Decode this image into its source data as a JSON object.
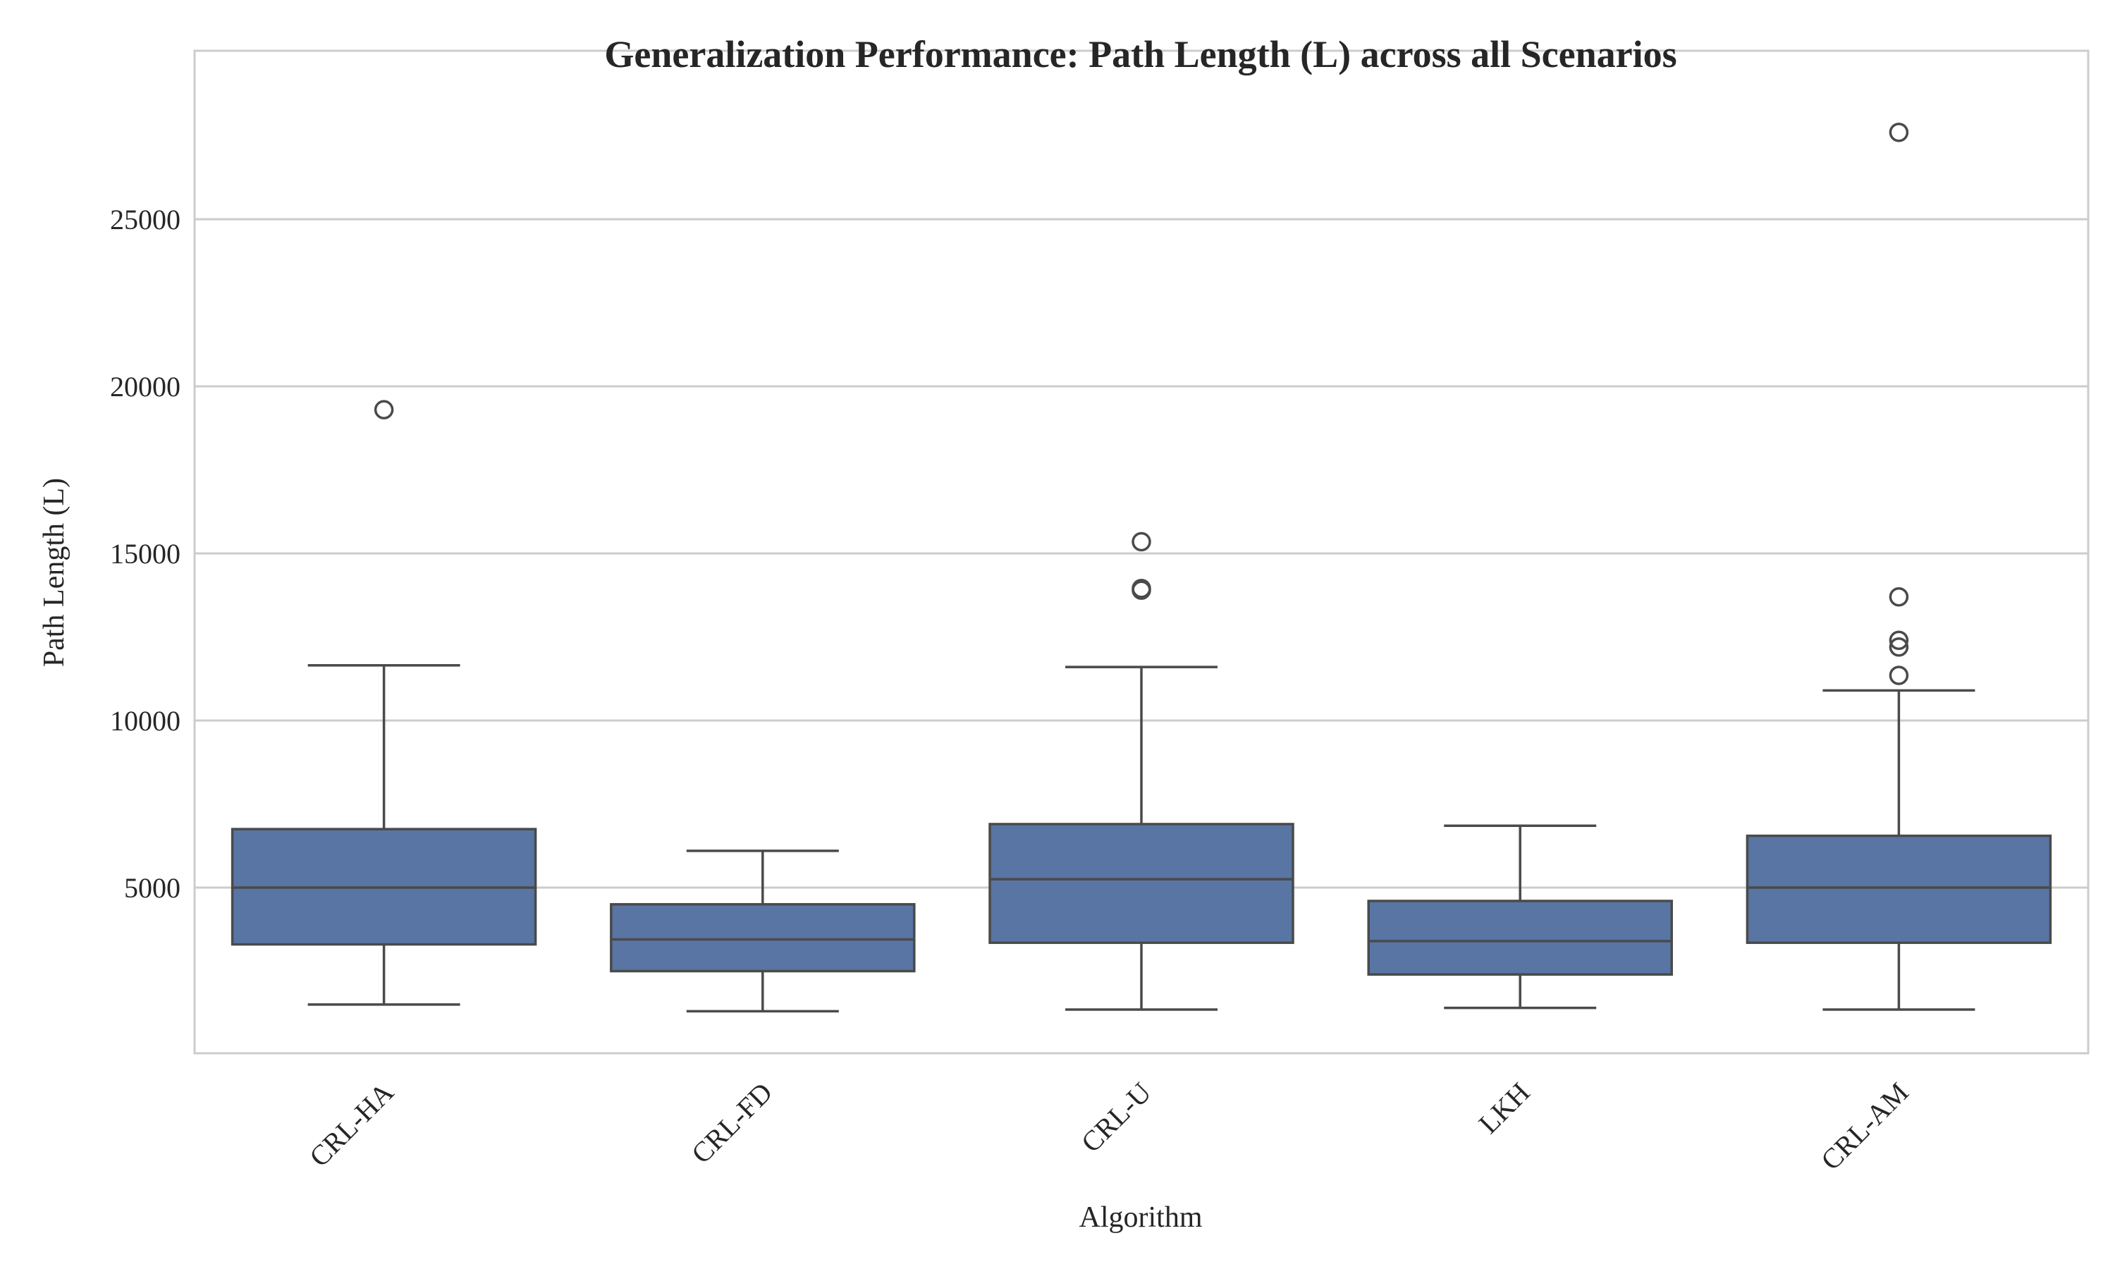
{
  "chart_data": {
    "type": "box",
    "title": "Generalization Performance: Path Length (L) across all Scenarios",
    "xlabel": "Algorithm",
    "ylabel": "Path Length (L)",
    "categories": [
      "CRL-HA",
      "CRL-FD",
      "CRL-U",
      "LKH",
      "CRL-AM"
    ],
    "y_ticks": [
      5000,
      10000,
      15000,
      20000,
      25000
    ],
    "ylim": [
      0,
      28500
    ],
    "grid": "horizontal",
    "x_tick_rotation_deg": 45,
    "colors": {
      "box_fill": "#5875a4",
      "line": "#4a4a4a",
      "grid": "#cccccc",
      "frame": "#cccccc",
      "text": "#262626"
    },
    "boxes": [
      {
        "category": "CRL-HA",
        "whisker_low": 1500,
        "q1": 3300,
        "median": 5000,
        "q3": 6750,
        "whisker_high": 11650,
        "outliers": [
          19300
        ]
      },
      {
        "category": "CRL-FD",
        "whisker_low": 1300,
        "q1": 2500,
        "median": 3450,
        "q3": 4500,
        "whisker_high": 6100,
        "outliers": []
      },
      {
        "category": "CRL-U",
        "whisker_low": 1350,
        "q1": 3350,
        "median": 5250,
        "q3": 6900,
        "whisker_high": 11600,
        "outliers": [
          13900,
          13950,
          15350
        ]
      },
      {
        "category": "LKH",
        "whisker_low": 1400,
        "q1": 2400,
        "median": 3400,
        "q3": 4600,
        "whisker_high": 6850,
        "outliers": []
      },
      {
        "category": "CRL-AM",
        "whisker_low": 1350,
        "q1": 3350,
        "median": 5000,
        "q3": 6550,
        "whisker_high": 10900,
        "outliers": [
          11350,
          12200,
          12400,
          13700,
          27600
        ]
      }
    ]
  }
}
